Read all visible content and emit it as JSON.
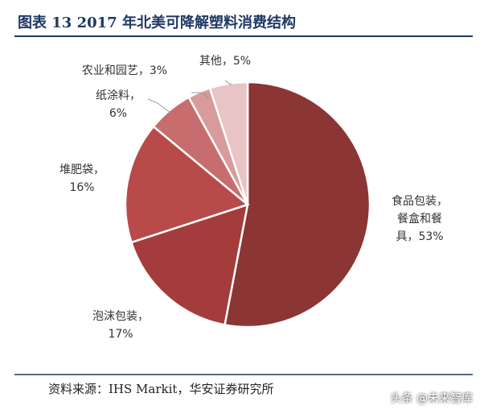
{
  "chart_data": {
    "type": "pie",
    "title": "图表 13 2017 年北美可降解塑料消费结构",
    "categories": [
      "食品包装，\n餐盒和餐\n具，",
      "泡沫包装，",
      "堆肥袋，",
      "纸涂料，",
      "农业和园艺，",
      "其他，"
    ],
    "values": [
      53,
      17,
      16,
      6,
      3,
      5
    ],
    "value_labels": [
      "53%",
      "17%",
      "16%",
      "6%",
      "3%",
      "5%"
    ],
    "colors": [
      "#8b3535",
      "#a53c3c",
      "#b84a4a",
      "#c86d6d",
      "#d89a9a",
      "#e8c4c6"
    ],
    "source": "资料来源：IHS Markit，华安证券研究所"
  },
  "watermark": "头条 @未来智库"
}
